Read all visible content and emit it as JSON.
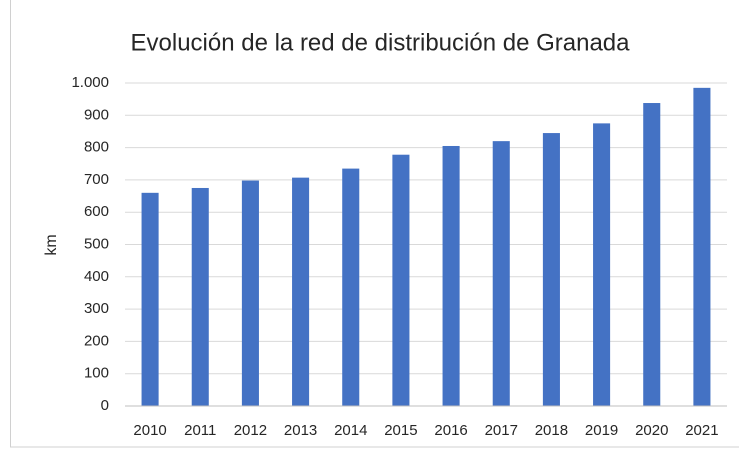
{
  "chart_data": {
    "type": "bar",
    "title": "Evolución de la red de distribución de Granada",
    "y_label": "km",
    "categories": [
      "2010",
      "2011",
      "2012",
      "2013",
      "2014",
      "2015",
      "2016",
      "2017",
      "2018",
      "2019",
      "2020",
      "2021"
    ],
    "values": [
      660,
      675,
      698,
      707,
      735,
      778,
      805,
      820,
      845,
      875,
      938,
      985
    ],
    "color": "#4472c4",
    "ylim": [
      0,
      1000
    ],
    "yticks": [
      0,
      100,
      200,
      300,
      400,
      500,
      600,
      700,
      800,
      900,
      {
        "value": 1000,
        "label": "1.000"
      }
    ],
    "grid": true
  }
}
